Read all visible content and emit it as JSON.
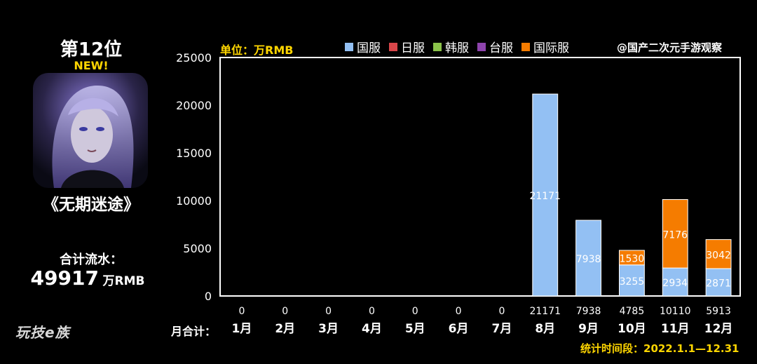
{
  "rank_label": "第12位",
  "new_badge": "NEW!",
  "game_name": "《无期迷途》",
  "total_label": "合计流水：",
  "total_value": "49917",
  "total_unit": "万RMB",
  "logo_text": "玩技e族",
  "watermark": "@国产二次元手游观察",
  "date_range": "统计时间段：2022.1.1—12.31",
  "month_total_label": "月合计：",
  "avatar_icon": "character-portrait-icon",
  "chart_data": {
    "type": "bar",
    "stacked": true,
    "unit_label": "单位：万RMB",
    "categories": [
      "1月",
      "2月",
      "3月",
      "4月",
      "5月",
      "6月",
      "7月",
      "8月",
      "9月",
      "10月",
      "11月",
      "12月"
    ],
    "month_totals": [
      "0",
      "0",
      "0",
      "0",
      "0",
      "0",
      "0",
      "21171",
      "7938",
      "4785",
      "10110",
      "5913"
    ],
    "series": [
      {
        "name": "国服",
        "color": "#93c0f3",
        "values": [
          0,
          0,
          0,
          0,
          0,
          0,
          0,
          21171,
          7938,
          3255,
          2934,
          2871
        ]
      },
      {
        "name": "日服",
        "color": "#d9464a",
        "values": [
          0,
          0,
          0,
          0,
          0,
          0,
          0,
          0,
          0,
          0,
          0,
          0
        ]
      },
      {
        "name": "韩服",
        "color": "#8bc34a",
        "values": [
          0,
          0,
          0,
          0,
          0,
          0,
          0,
          0,
          0,
          0,
          0,
          0
        ]
      },
      {
        "name": "台服",
        "color": "#8e44ad",
        "values": [
          0,
          0,
          0,
          0,
          0,
          0,
          0,
          0,
          0,
          0,
          0,
          0
        ]
      },
      {
        "name": "国际服",
        "color": "#f57c00",
        "values": [
          0,
          0,
          0,
          0,
          0,
          0,
          0,
          0,
          0,
          1530,
          7176,
          3042
        ]
      }
    ],
    "ylim": [
      0,
      25000
    ],
    "yticks": [
      0,
      5000,
      10000,
      15000,
      20000,
      25000
    ],
    "grid": false,
    "legend_position": "top"
  }
}
